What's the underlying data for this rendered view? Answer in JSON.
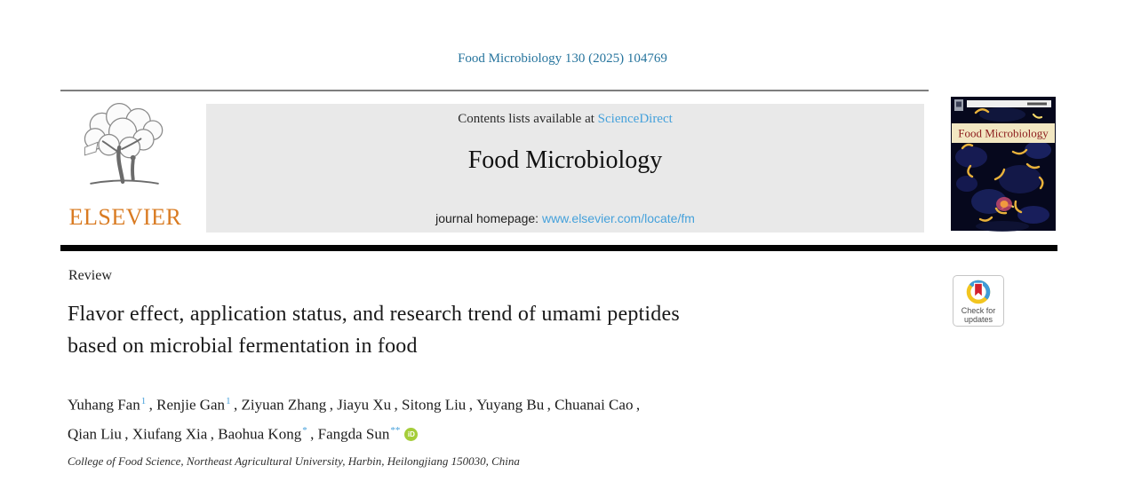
{
  "journal_ref": "Food Microbiology 130 (2025) 104769",
  "masthead": {
    "contents_line": "Contents lists available at ",
    "sciencedirect_label": "ScienceDirect",
    "journal_title": "Food Microbiology",
    "homepage_label": "journal homepage: ",
    "homepage_url": "www.elsevier.com/locate/fm",
    "publisher_wordmark": "ELSEVIER",
    "cover_title": "Food Microbiology"
  },
  "article": {
    "type": "Review",
    "title_lines": [
      "Flavor effect, application status, and research trend of umami peptides",
      "based on microbial fermentation in food"
    ],
    "authors": [
      {
        "name": "Yuhang Fan",
        "sup": "1"
      },
      {
        "name": "Renjie Gan",
        "sup": "1"
      },
      {
        "name": "Ziyuan Zhang",
        "sup": ""
      },
      {
        "name": "Jiayu Xu",
        "sup": ""
      },
      {
        "name": "Sitong Liu",
        "sup": ""
      },
      {
        "name": "Yuyang Bu",
        "sup": ""
      },
      {
        "name": "Chuanai Cao",
        "sup": "",
        "break_after": true
      },
      {
        "name": "Qian Liu",
        "sup": ""
      },
      {
        "name": "Xiufang Xia",
        "sup": ""
      },
      {
        "name": "Baohua Kong",
        "sup": "*"
      },
      {
        "name": "Fangda Sun",
        "sup": "**",
        "orcid": true
      }
    ],
    "affiliation": "College of Food Science, Northeast Agricultural University, Harbin, Heilongjiang 150030, China"
  },
  "badge": {
    "line1": "Check for",
    "line2": "updates"
  },
  "icons": {
    "orcid": "iD",
    "elsevier_tree": "elsevier-tree-logo",
    "check_updates_ring": "check-updates-icon"
  },
  "colors": {
    "citation_teal": "#26749D",
    "link_blue": "#45A1DB",
    "elsevier_orange": "#D97B22",
    "masthead_gray": "#E9E9E9",
    "orcid_green": "#A5CD39",
    "badge_red": "#D21F2C",
    "badge_blue": "#3F9BD8",
    "badge_yellow": "#F2C51F",
    "cover_navy": "#06081D",
    "cover_banner_cream": "#F2E7C2",
    "cover_title_red": "#8C1C1C"
  }
}
